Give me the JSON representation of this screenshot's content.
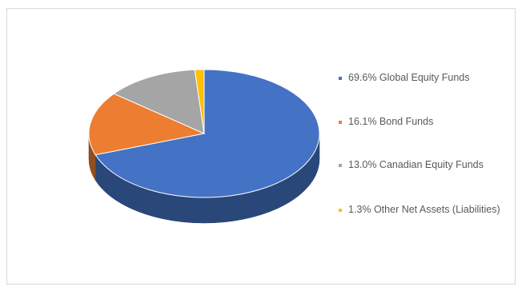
{
  "chart_data": {
    "type": "pie",
    "style": "3d",
    "legend_position": "right",
    "slices": [
      {
        "label": "69.6% Global Equity Funds",
        "value": 69.6,
        "color": "#4472C4"
      },
      {
        "label": "16.1% Bond Funds",
        "value": 16.1,
        "color": "#ED7D31"
      },
      {
        "label": "13.0% Canadian Equity Funds",
        "value": 13.0,
        "color": "#A5A5A5"
      },
      {
        "label": "1.3% Other Net Assets (Liabilities)",
        "value": 1.3,
        "color": "#FFC000"
      }
    ]
  }
}
